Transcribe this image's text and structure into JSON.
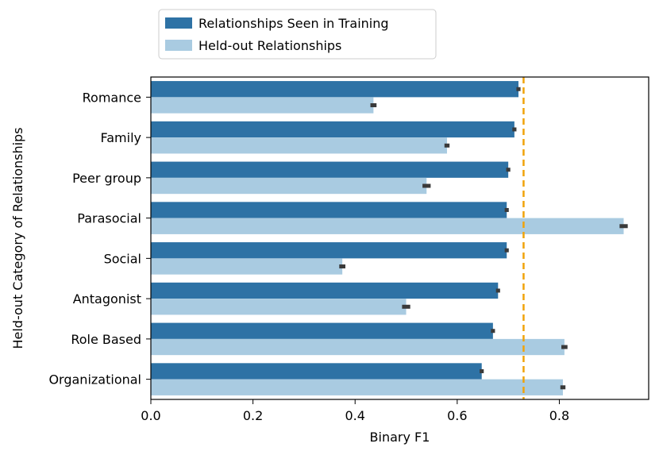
{
  "chart_data": {
    "type": "bar",
    "orientation": "horizontal",
    "categories": [
      "Romance",
      "Family",
      "Peer group",
      "Parasocial",
      "Social",
      "Antagonist",
      "Role Based",
      "Organizational"
    ],
    "series": [
      {
        "name": "Relationships Seen in Training",
        "color": "#2e72a5",
        "values": [
          0.72,
          0.712,
          0.7,
          0.697,
          0.697,
          0.68,
          0.67,
          0.648
        ],
        "error": [
          0.004,
          0.004,
          0.004,
          0.004,
          0.004,
          0.004,
          0.004,
          0.004
        ]
      },
      {
        "name": "Held-out Relationships",
        "color": "#a9cbe1",
        "values": [
          0.436,
          0.58,
          0.54,
          0.926,
          0.375,
          0.5,
          0.81,
          0.807
        ],
        "error": [
          0.006,
          0.005,
          0.008,
          0.008,
          0.006,
          0.008,
          0.006,
          0.005
        ]
      }
    ],
    "xlabel": "Binary F1",
    "ylabel": "Held-out Category of Relationships",
    "xlim": [
      0.0,
      0.975
    ],
    "xticks": [
      "0.0",
      "0.2",
      "0.4",
      "0.6",
      "0.8"
    ],
    "reference_line": {
      "x": 0.73,
      "color": "#f0a30a",
      "style": "dashed"
    },
    "grid": false,
    "legend_position": "top-left, above plot"
  }
}
